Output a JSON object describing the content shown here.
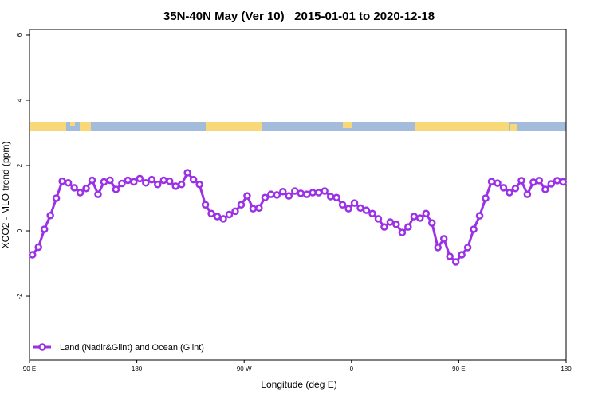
{
  "chart_data": {
    "type": "line",
    "title": "35N-40N May (Ver 10)   2015-01-01 to 2020-12-18",
    "xlabel": "Longitude (deg E)",
    "ylabel": "XCO2 - MLO trend (ppm)",
    "legend": "bottom-left",
    "xlim": [
      90,
      540
    ],
    "ylim": [
      -3.95,
      6.17
    ],
    "xticks": [
      {
        "value": 90,
        "label": "90 E"
      },
      180,
      {
        "value": 270,
        "label": "90 W"
      },
      {
        "value": 360,
        "label": "0"
      },
      {
        "value": 450,
        "label": "90 E"
      },
      {
        "value": 540,
        "label": "180"
      }
    ],
    "yticks": [
      -2,
      0,
      2,
      4,
      6
    ],
    "x": [
      92.5,
      97.5,
      102.5,
      107.5,
      112.5,
      117.5,
      122.5,
      127.5,
      132.5,
      137.5,
      142.5,
      147.5,
      152.5,
      157.5,
      162.5,
      167.5,
      172.5,
      177.5,
      182.5,
      187.5,
      192.5,
      197.5,
      202.5,
      207.5,
      212.5,
      217.5,
      222.5,
      227.5,
      232.5,
      237.5,
      242.5,
      247.5,
      252.5,
      257.5,
      262.5,
      267.5,
      272.5,
      277.5,
      282.5,
      287.5,
      292.5,
      297.5,
      302.5,
      307.5,
      312.5,
      317.5,
      322.5,
      327.5,
      332.5,
      337.5,
      342.5,
      347.5,
      352.5,
      357.5,
      362.5,
      367.5,
      372.5,
      377.5,
      382.5,
      387.5,
      392.5,
      397.5,
      402.5,
      407.5,
      412.5,
      417.5,
      422.5,
      427.5,
      432.5,
      437.5,
      442.5,
      447.5,
      452.5,
      457.5,
      462.5,
      467.5,
      472.5,
      477.5,
      482.5,
      487.5,
      492.5,
      497.5,
      502.5,
      507.5,
      512.5,
      517.5,
      522.5,
      527.5,
      532.5,
      537.5
    ],
    "series": [
      {
        "name": "Land (Nadir&Glint) and Ocean (Glint)",
        "color": "#9b30e6",
        "values": [
          -0.73,
          -0.5,
          0.05,
          0.47,
          1.0,
          1.52,
          1.47,
          1.32,
          1.17,
          1.3,
          1.55,
          1.12,
          1.5,
          1.55,
          1.27,
          1.45,
          1.55,
          1.5,
          1.6,
          1.47,
          1.57,
          1.42,
          1.55,
          1.52,
          1.37,
          1.42,
          1.78,
          1.57,
          1.42,
          0.8,
          0.53,
          0.44,
          0.37,
          0.5,
          0.6,
          0.8,
          1.07,
          0.68,
          0.7,
          1.02,
          1.12,
          1.1,
          1.2,
          1.07,
          1.22,
          1.15,
          1.12,
          1.17,
          1.17,
          1.22,
          1.05,
          1.02,
          0.8,
          0.68,
          0.85,
          0.7,
          0.63,
          0.53,
          0.37,
          0.12,
          0.27,
          0.2,
          -0.05,
          0.12,
          0.44,
          0.39,
          0.53,
          0.24,
          -0.51,
          -0.24,
          -0.78,
          -0.95,
          -0.73,
          -0.51,
          0.05,
          0.46,
          1.0,
          1.51,
          1.46,
          1.32,
          1.17,
          1.3,
          1.54,
          1.12,
          1.49,
          1.54,
          1.27,
          1.44,
          1.54,
          1.5
        ]
      }
    ]
  }
}
